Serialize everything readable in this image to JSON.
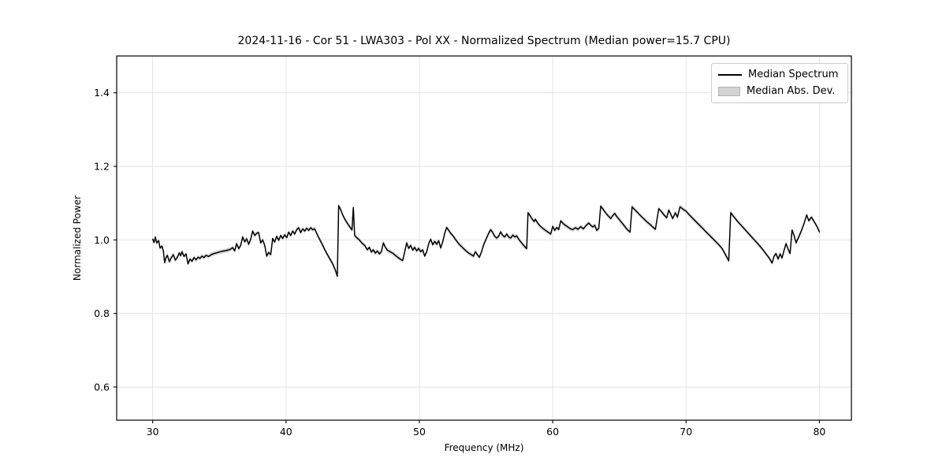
{
  "figure": {
    "title": "2024-11-16 - Cor 51 - LWA303 - Pol XX - Normalized Spectrum (Median power=15.7 CPU)",
    "xlabel": "Frequency (MHz)",
    "ylabel": "Normalized Power"
  },
  "legend": {
    "entries": [
      {
        "label": "Median Spectrum",
        "swatch": "line",
        "color": "#000000"
      },
      {
        "label": "Median Abs. Dev.",
        "swatch": "patch",
        "color": "#d3d3d3"
      }
    ],
    "position": "upper right"
  },
  "colors": {
    "line": "#000000",
    "band": "#cccccc",
    "grid": "#e0e0e0",
    "spine": "#000000",
    "background": "#ffffff"
  },
  "chart_data": {
    "type": "line",
    "title": "2024-11-16 - Cor 51 - LWA303 - Pol XX - Normalized Spectrum (Median power=15.7 CPU)",
    "xlabel": "Frequency (MHz)",
    "ylabel": "Normalized Power",
    "xlim": [
      27.3,
      82.4
    ],
    "ylim": [
      0.51,
      1.5
    ],
    "xtick_values": [
      30,
      40,
      50,
      60,
      70,
      80
    ],
    "xtick_labels": [
      "30",
      "40",
      "50",
      "60",
      "70",
      "80"
    ],
    "ytick_values": [
      0.6,
      0.8,
      1.0,
      1.2,
      1.4
    ],
    "ytick_labels": [
      "0.6",
      "0.8",
      "1.0",
      "1.2",
      "1.4"
    ],
    "grid": true,
    "legend_position": "upper right",
    "series": [
      {
        "name": "Median Spectrum",
        "color": "#000000",
        "points": [
          [
            30.0,
            1.002
          ],
          [
            30.1,
            0.993
          ],
          [
            30.2,
            1.008
          ],
          [
            30.3,
            0.992
          ],
          [
            30.45,
            0.998
          ],
          [
            30.55,
            0.978
          ],
          [
            30.7,
            0.983
          ],
          [
            30.8,
            0.97
          ],
          [
            30.9,
            0.938
          ],
          [
            31.0,
            0.952
          ],
          [
            31.1,
            0.958
          ],
          [
            31.25,
            0.941
          ],
          [
            31.4,
            0.952
          ],
          [
            31.55,
            0.96
          ],
          [
            31.7,
            0.945
          ],
          [
            31.85,
            0.953
          ],
          [
            32.0,
            0.965
          ],
          [
            32.1,
            0.957
          ],
          [
            32.2,
            0.968
          ],
          [
            32.35,
            0.955
          ],
          [
            32.5,
            0.962
          ],
          [
            32.65,
            0.935
          ],
          [
            32.8,
            0.948
          ],
          [
            32.95,
            0.942
          ],
          [
            33.1,
            0.952
          ],
          [
            33.25,
            0.946
          ],
          [
            33.4,
            0.953
          ],
          [
            33.55,
            0.95
          ],
          [
            33.7,
            0.956
          ],
          [
            33.85,
            0.952
          ],
          [
            34.0,
            0.958
          ],
          [
            34.2,
            0.955
          ],
          [
            34.4,
            0.96
          ],
          [
            34.6,
            0.963
          ],
          [
            34.8,
            0.965
          ],
          [
            35.0,
            0.967
          ],
          [
            35.2,
            0.969
          ],
          [
            35.4,
            0.97
          ],
          [
            35.6,
            0.972
          ],
          [
            35.8,
            0.974
          ],
          [
            36.0,
            0.979
          ],
          [
            36.15,
            0.97
          ],
          [
            36.3,
            0.99
          ],
          [
            36.45,
            0.976
          ],
          [
            36.6,
            0.985
          ],
          [
            36.75,
            1.008
          ],
          [
            36.9,
            0.995
          ],
          [
            37.05,
            1.003
          ],
          [
            37.2,
            0.988
          ],
          [
            37.35,
            1.002
          ],
          [
            37.5,
            1.024
          ],
          [
            37.65,
            1.012
          ],
          [
            37.8,
            1.018
          ],
          [
            37.95,
            1.02
          ],
          [
            38.1,
            0.992
          ],
          [
            38.25,
            1.0
          ],
          [
            38.4,
            0.985
          ],
          [
            38.55,
            0.956
          ],
          [
            38.7,
            0.966
          ],
          [
            38.85,
            0.96
          ],
          [
            39.0,
            1.004
          ],
          [
            39.15,
            0.994
          ],
          [
            39.3,
            1.01
          ],
          [
            39.45,
            0.999
          ],
          [
            39.6,
            1.012
          ],
          [
            39.75,
            1.004
          ],
          [
            39.9,
            1.014
          ],
          [
            40.05,
            1.006
          ],
          [
            40.2,
            1.021
          ],
          [
            40.35,
            1.012
          ],
          [
            40.5,
            1.024
          ],
          [
            40.65,
            1.016
          ],
          [
            40.8,
            1.028
          ],
          [
            40.95,
            1.033
          ],
          [
            41.1,
            1.02
          ],
          [
            41.25,
            1.03
          ],
          [
            41.4,
            1.024
          ],
          [
            41.55,
            1.032
          ],
          [
            41.7,
            1.026
          ],
          [
            41.85,
            1.033
          ],
          [
            42.0,
            1.028
          ],
          [
            42.15,
            1.03
          ],
          [
            42.3,
            1.018
          ],
          [
            42.5,
            1.003
          ],
          [
            42.7,
            0.989
          ],
          [
            42.9,
            0.974
          ],
          [
            43.1,
            0.96
          ],
          [
            43.3,
            0.948
          ],
          [
            43.5,
            0.935
          ],
          [
            43.7,
            0.918
          ],
          [
            43.85,
            0.901
          ],
          [
            43.95,
            1.093
          ],
          [
            44.1,
            1.082
          ],
          [
            44.25,
            1.068
          ],
          [
            44.4,
            1.057
          ],
          [
            44.55,
            1.048
          ],
          [
            44.7,
            1.04
          ],
          [
            44.85,
            1.032
          ],
          [
            44.95,
            1.027
          ],
          [
            45.05,
            1.088
          ],
          [
            45.15,
            1.012
          ],
          [
            45.3,
            1.006
          ],
          [
            45.5,
            1.0
          ],
          [
            45.7,
            0.991
          ],
          [
            45.9,
            0.985
          ],
          [
            46.1,
            0.973
          ],
          [
            46.25,
            0.98
          ],
          [
            46.4,
            0.967
          ],
          [
            46.55,
            0.973
          ],
          [
            46.7,
            0.964
          ],
          [
            46.85,
            0.97
          ],
          [
            47.0,
            0.962
          ],
          [
            47.15,
            0.968
          ],
          [
            47.3,
            0.992
          ],
          [
            47.45,
            0.98
          ],
          [
            47.6,
            0.972
          ],
          [
            47.8,
            0.968
          ],
          [
            48.0,
            0.964
          ],
          [
            48.2,
            0.958
          ],
          [
            48.4,
            0.952
          ],
          [
            48.6,
            0.947
          ],
          [
            48.75,
            0.944
          ],
          [
            48.9,
            0.968
          ],
          [
            49.05,
            0.992
          ],
          [
            49.2,
            0.977
          ],
          [
            49.35,
            0.985
          ],
          [
            49.5,
            0.972
          ],
          [
            49.65,
            0.98
          ],
          [
            49.8,
            0.97
          ],
          [
            49.95,
            0.977
          ],
          [
            50.1,
            0.968
          ],
          [
            50.25,
            0.973
          ],
          [
            50.4,
            0.956
          ],
          [
            50.55,
            0.968
          ],
          [
            50.7,
            0.99
          ],
          [
            50.85,
            1.002
          ],
          [
            51.0,
            0.987
          ],
          [
            51.15,
            0.996
          ],
          [
            51.3,
            0.988
          ],
          [
            51.45,
            0.998
          ],
          [
            51.6,
            0.978
          ],
          [
            51.75,
            0.995
          ],
          [
            51.9,
            1.018
          ],
          [
            52.05,
            1.034
          ],
          [
            52.2,
            1.026
          ],
          [
            52.35,
            1.018
          ],
          [
            52.5,
            1.012
          ],
          [
            52.7,
            1.002
          ],
          [
            52.9,
            0.992
          ],
          [
            53.1,
            0.984
          ],
          [
            53.3,
            0.977
          ],
          [
            53.5,
            0.97
          ],
          [
            53.7,
            0.964
          ],
          [
            53.9,
            0.96
          ],
          [
            54.05,
            0.956
          ],
          [
            54.2,
            0.968
          ],
          [
            54.35,
            0.96
          ],
          [
            54.5,
            0.953
          ],
          [
            54.65,
            0.966
          ],
          [
            54.8,
            0.985
          ],
          [
            55.0,
            1.002
          ],
          [
            55.2,
            1.018
          ],
          [
            55.35,
            1.028
          ],
          [
            55.5,
            1.02
          ],
          [
            55.65,
            1.01
          ],
          [
            55.8,
            1.005
          ],
          [
            55.95,
            1.01
          ],
          [
            56.1,
            1.022
          ],
          [
            56.25,
            1.012
          ],
          [
            56.4,
            1.008
          ],
          [
            56.55,
            1.016
          ],
          [
            56.7,
            1.008
          ],
          [
            56.85,
            1.005
          ],
          [
            57.0,
            1.013
          ],
          [
            57.15,
            1.008
          ],
          [
            57.3,
            1.011
          ],
          [
            57.45,
            1.002
          ],
          [
            57.6,
            0.995
          ],
          [
            57.75,
            0.988
          ],
          [
            57.9,
            0.982
          ],
          [
            58.05,
            0.976
          ],
          [
            58.15,
            1.074
          ],
          [
            58.3,
            1.066
          ],
          [
            58.45,
            1.057
          ],
          [
            58.6,
            1.05
          ],
          [
            58.7,
            1.056
          ],
          [
            58.85,
            1.047
          ],
          [
            59.0,
            1.04
          ],
          [
            59.15,
            1.035
          ],
          [
            59.3,
            1.03
          ],
          [
            59.5,
            1.025
          ],
          [
            59.7,
            1.02
          ],
          [
            59.85,
            1.016
          ],
          [
            60.0,
            1.037
          ],
          [
            60.15,
            1.026
          ],
          [
            60.3,
            1.034
          ],
          [
            60.45,
            1.028
          ],
          [
            60.6,
            1.052
          ],
          [
            60.75,
            1.046
          ],
          [
            60.9,
            1.041
          ],
          [
            61.1,
            1.036
          ],
          [
            61.3,
            1.031
          ],
          [
            61.5,
            1.028
          ],
          [
            61.7,
            1.033
          ],
          [
            61.9,
            1.029
          ],
          [
            62.1,
            1.036
          ],
          [
            62.3,
            1.03
          ],
          [
            62.5,
            1.039
          ],
          [
            62.7,
            1.046
          ],
          [
            62.85,
            1.04
          ],
          [
            63.0,
            1.035
          ],
          [
            63.15,
            1.04
          ],
          [
            63.3,
            1.026
          ],
          [
            63.45,
            1.031
          ],
          [
            63.6,
            1.092
          ],
          [
            63.75,
            1.085
          ],
          [
            63.9,
            1.077
          ],
          [
            64.05,
            1.07
          ],
          [
            64.2,
            1.064
          ],
          [
            64.35,
            1.058
          ],
          [
            64.5,
            1.066
          ],
          [
            64.65,
            1.072
          ],
          [
            64.8,
            1.064
          ],
          [
            65.0,
            1.055
          ],
          [
            65.2,
            1.046
          ],
          [
            65.4,
            1.037
          ],
          [
            65.6,
            1.028
          ],
          [
            65.8,
            1.021
          ],
          [
            65.95,
            1.09
          ],
          [
            66.1,
            1.084
          ],
          [
            66.3,
            1.077
          ],
          [
            66.5,
            1.069
          ],
          [
            66.7,
            1.062
          ],
          [
            66.9,
            1.055
          ],
          [
            67.1,
            1.048
          ],
          [
            67.3,
            1.042
          ],
          [
            67.5,
            1.035
          ],
          [
            67.7,
            1.029
          ],
          [
            67.95,
            1.085
          ],
          [
            68.15,
            1.077
          ],
          [
            68.35,
            1.068
          ],
          [
            68.55,
            1.06
          ],
          [
            68.7,
            1.081
          ],
          [
            68.85,
            1.07
          ],
          [
            69.0,
            1.058
          ],
          [
            69.2,
            1.074
          ],
          [
            69.35,
            1.062
          ],
          [
            69.55,
            1.09
          ],
          [
            69.75,
            1.084
          ],
          [
            70.0,
            1.078
          ],
          [
            70.3,
            1.066
          ],
          [
            70.6,
            1.055
          ],
          [
            70.9,
            1.044
          ],
          [
            71.2,
            1.033
          ],
          [
            71.5,
            1.022
          ],
          [
            71.8,
            1.011
          ],
          [
            72.1,
            1.0
          ],
          [
            72.4,
            0.989
          ],
          [
            72.7,
            0.977
          ],
          [
            73.0,
            0.957
          ],
          [
            73.2,
            0.943
          ],
          [
            73.35,
            1.074
          ],
          [
            73.6,
            1.062
          ],
          [
            73.9,
            1.049
          ],
          [
            74.2,
            1.037
          ],
          [
            74.5,
            1.025
          ],
          [
            74.8,
            1.013
          ],
          [
            75.1,
            1.001
          ],
          [
            75.4,
            0.989
          ],
          [
            75.7,
            0.976
          ],
          [
            76.0,
            0.962
          ],
          [
            76.25,
            0.95
          ],
          [
            76.45,
            0.937
          ],
          [
            76.6,
            0.956
          ],
          [
            76.75,
            0.963
          ],
          [
            76.9,
            0.948
          ],
          [
            77.05,
            0.962
          ],
          [
            77.2,
            0.951
          ],
          [
            77.35,
            0.972
          ],
          [
            77.5,
            0.99
          ],
          [
            77.65,
            0.975
          ],
          [
            77.8,
            0.963
          ],
          [
            77.95,
            1.027
          ],
          [
            78.1,
            1.012
          ],
          [
            78.25,
            0.992
          ],
          [
            78.45,
            1.008
          ],
          [
            78.65,
            1.025
          ],
          [
            78.85,
            1.045
          ],
          [
            79.05,
            1.068
          ],
          [
            79.2,
            1.052
          ],
          [
            79.4,
            1.062
          ],
          [
            79.6,
            1.05
          ],
          [
            79.8,
            1.038
          ],
          [
            80.0,
            1.022
          ]
        ]
      },
      {
        "name": "Median Abs. Dev.",
        "color": "#cccccc",
        "band_halfwidth": 0.006
      }
    ]
  }
}
